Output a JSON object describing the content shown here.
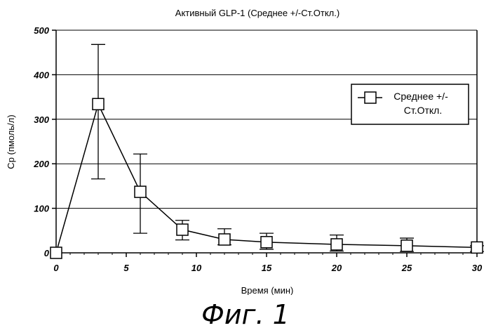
{
  "chart_data": {
    "type": "line",
    "title": "Активный GLP-1 (Среднее +/-Ст.Откл.)",
    "xlabel": "Время (мин)",
    "ylabel": "Cp (пмоль/л)",
    "xlim": [
      0,
      30
    ],
    "ylim": [
      0,
      500
    ],
    "xticks": [
      0,
      5,
      10,
      15,
      20,
      25,
      30
    ],
    "yticks": [
      0,
      100,
      200,
      300,
      400,
      500
    ],
    "grid": "horizontal",
    "legend_position": "right",
    "legend_lines": [
      "Среднее +/-",
      "Ст.Откл."
    ],
    "series": [
      {
        "name": "Среднее +/- Ст.Откл.",
        "x": [
          0,
          3,
          6,
          9,
          12,
          15,
          20,
          25,
          30
        ],
        "y": [
          0,
          334,
          137,
          52,
          30,
          24,
          19,
          16,
          12
        ],
        "err_low": [
          0,
          166,
          44,
          29,
          18,
          8,
          4,
          3,
          3
        ],
        "err_high": [
          0,
          468,
          222,
          73,
          54,
          44,
          40,
          33,
          16
        ],
        "marker": "square"
      }
    ]
  },
  "figure_caption": "Фиг. 1"
}
